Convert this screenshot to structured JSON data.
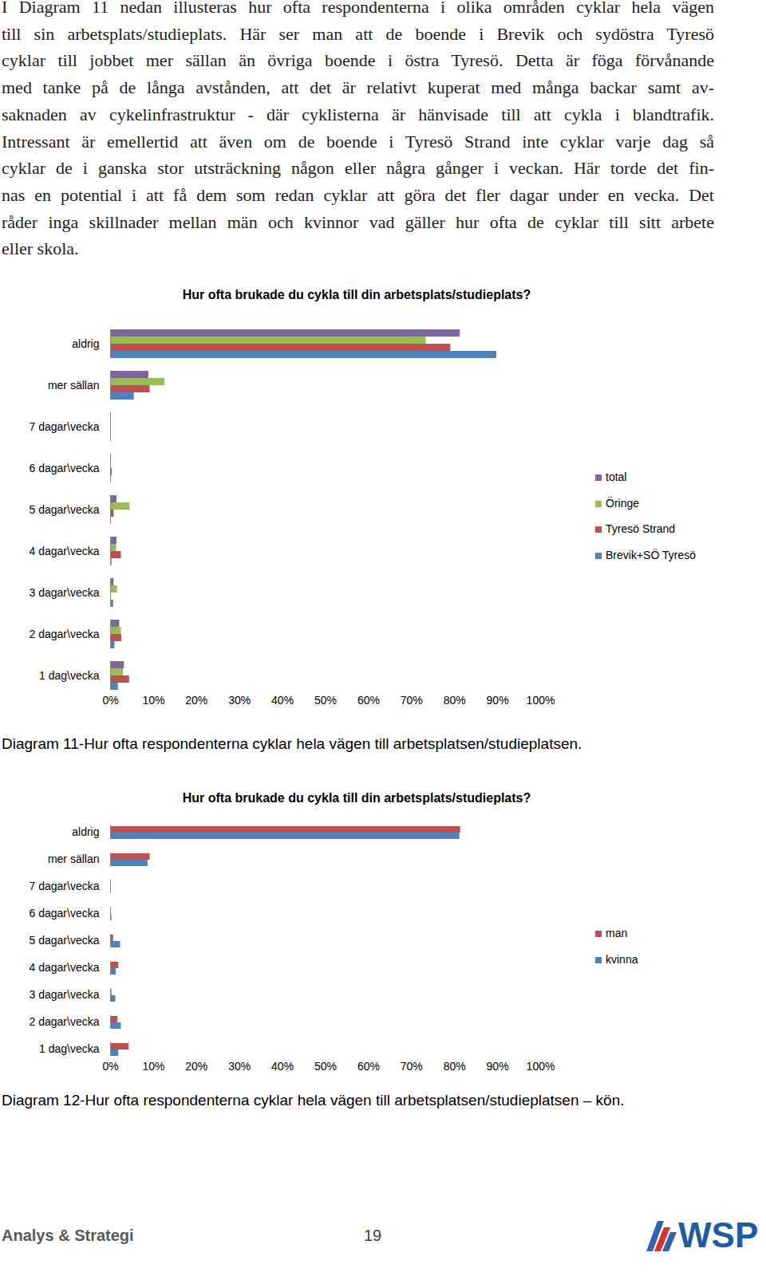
{
  "document": {
    "paragraph": [
      "I Diagram 11 nedan illusteras hur ofta respondenterna i olika områden cyklar hela vägen",
      "till sin arbetsplats/studieplats. Här ser man att de boende i Brevik och sydöstra Tyresö",
      "cyklar till jobbet mer sällan än övriga boende i östra Tyresö. Detta är föga förvånande",
      "med tanke på de långa avstånden, att det är relativt kuperat med många backar samt av-",
      "saknaden av cykelinfrastruktur - där cyklisterna är hänvisade till att cykla i blandtrafik.",
      "Intressant är emellertid att även om de boende i Tyresö Strand inte cyklar varje dag så",
      "cyklar de i ganska stor utsträckning någon eller några gånger i veckan. Här torde det fin-",
      "nas en potential i att få dem som redan cyklar att göra det fler dagar under en vecka. Det",
      "råder inga skillnader mellan män och kvinnor vad gäller hur ofta de cyklar till sitt arbete",
      "eller skola."
    ],
    "captions": [
      "Diagram 11-Hur ofta respondenterna cyklar hela vägen till arbetsplatsen/studieplatsen.",
      "Diagram 12-Hur ofta respondenterna cyklar hela vägen till arbetsplatsen/studieplatsen – kön."
    ],
    "footer": {
      "section": "Analys & Strategi",
      "page": 19,
      "logo": "WSP"
    }
  },
  "chart_data": [
    {
      "type": "bar",
      "orientation": "horizontal",
      "title": "Hur ofta brukade du cykla till din arbetsplats/studieplats?",
      "categories": [
        "aldrig",
        "mer sällan",
        "7 dagar\\vecka",
        "6 dagar\\vecka",
        "5 dagar\\vecka",
        "4 dagar\\vecka",
        "3 dagar\\vecka",
        "2 dagar\\vecka",
        "1 dag\\vecka"
      ],
      "series": [
        {
          "name": "total",
          "color": "#8064A2",
          "values": [
            81.3,
            8.9,
            0,
            0.2,
            1.5,
            1.5,
            0.8,
            2.1,
            3.2
          ]
        },
        {
          "name": "Öringe",
          "color": "#9BBB59",
          "values": [
            73.4,
            12.6,
            0,
            0,
            4.5,
            1.4,
            1.6,
            2.5,
            3.0
          ]
        },
        {
          "name": "Tyresö Strand",
          "color": "#C0504D",
          "values": [
            79.1,
            9.2,
            0,
            0.4,
            0.8,
            2.5,
            0.2,
            2.6,
            4.4
          ]
        },
        {
          "name": "Brevik+SÖ Tyresö",
          "color": "#4F81BD",
          "values": [
            89.8,
            5.5,
            0,
            0,
            0.2,
            0.3,
            0.7,
            1.0,
            1.8
          ]
        }
      ],
      "xlim": [
        0,
        100
      ],
      "xticks": [
        {
          "value": 0,
          "label": "0%"
        },
        {
          "value": 10,
          "label": "10%"
        },
        {
          "value": 20,
          "label": "20%"
        },
        {
          "value": 30,
          "label": "30%"
        },
        {
          "value": 40,
          "label": "40%"
        },
        {
          "value": 50,
          "label": "50%"
        },
        {
          "value": 60,
          "label": "60%"
        },
        {
          "value": 70,
          "label": "70%"
        },
        {
          "value": 80,
          "label": "80%"
        },
        {
          "value": 90,
          "label": "90%"
        },
        {
          "value": 100,
          "label": "100%"
        }
      ],
      "grid": false,
      "legend": "right"
    },
    {
      "type": "bar",
      "orientation": "horizontal",
      "title": "Hur ofta brukade du cykla till din arbetsplats/studieplats?",
      "categories": [
        "aldrig",
        "mer sällan",
        "7 dagar\\vecka",
        "6 dagar\\vecka",
        "5 dagar\\vecka",
        "4 dagar\\vecka",
        "3 dagar\\vecka",
        "2 dagar\\vecka",
        "1 dag\\vecka"
      ],
      "series": [
        {
          "name": "man",
          "color": "#C0504D",
          "values": [
            81.4,
            9.2,
            0,
            0,
            0.7,
            1.9,
            0.3,
            1.7,
            4.3
          ]
        },
        {
          "name": "kvinna",
          "color": "#4F81BD",
          "values": [
            81.2,
            8.7,
            0,
            0.3,
            2.3,
            1.3,
            1.2,
            2.5,
            1.9
          ]
        }
      ],
      "xlim": [
        0,
        100
      ],
      "xticks": [
        {
          "value": 0,
          "label": "0%"
        },
        {
          "value": 10,
          "label": "10%"
        },
        {
          "value": 20,
          "label": "20%"
        },
        {
          "value": 30,
          "label": "30%"
        },
        {
          "value": 40,
          "label": "40%"
        },
        {
          "value": 50,
          "label": "50%"
        },
        {
          "value": 60,
          "label": "60%"
        },
        {
          "value": 70,
          "label": "70%"
        },
        {
          "value": 80,
          "label": "80%"
        },
        {
          "value": 90,
          "label": "90%"
        },
        {
          "value": 100,
          "label": "100%"
        }
      ],
      "grid": false,
      "legend": "right"
    }
  ]
}
